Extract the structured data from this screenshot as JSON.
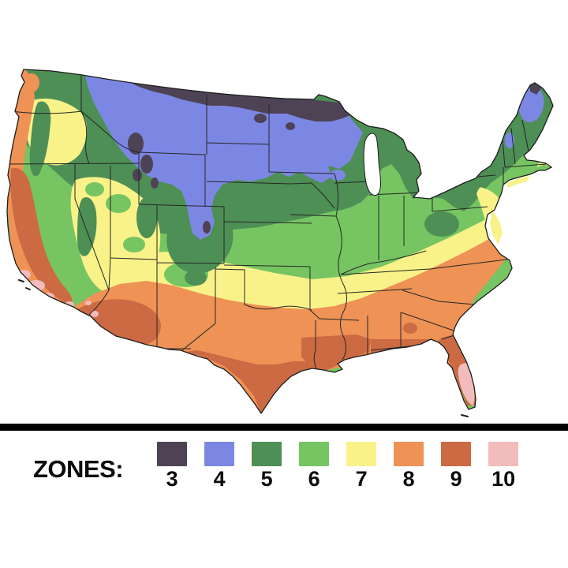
{
  "page": {
    "background": "#ffffff"
  },
  "map": {
    "name": "USDA plant hardiness zones map of the contiguous United States",
    "outline_color": "#1c1c1c",
    "state_line_color": "#262626",
    "lake_color": "#ffffff"
  },
  "divider": {
    "color": "#000000"
  },
  "legend": {
    "label": "ZONES:",
    "zones": [
      {
        "zone": "3",
        "color": "#4e4355"
      },
      {
        "zone": "4",
        "color": "#7c87e4"
      },
      {
        "zone": "5",
        "color": "#4d8f55"
      },
      {
        "zone": "6",
        "color": "#76c562"
      },
      {
        "zone": "7",
        "color": "#f8f289"
      },
      {
        "zone": "8",
        "color": "#ee9255"
      },
      {
        "zone": "9",
        "color": "#cb6a43"
      },
      {
        "zone": "10",
        "color": "#f2bcbc"
      }
    ]
  }
}
